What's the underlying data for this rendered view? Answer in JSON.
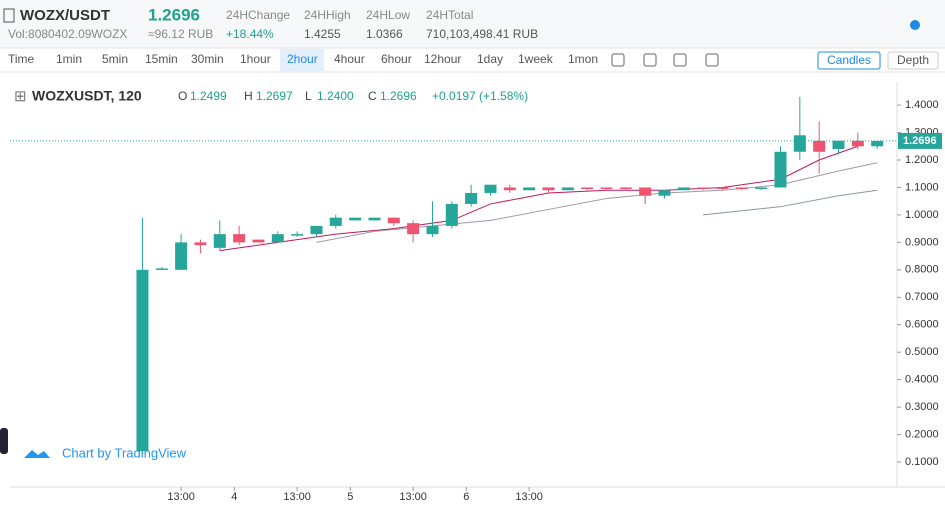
{
  "header": {
    "pair": "WOZX/USDT",
    "price": "1.2696",
    "volume": "Vol:8080402.09WOZX",
    "approx": "≈96.12 RUB",
    "stats": [
      {
        "label": "24HChange",
        "value": "+18.44%"
      },
      {
        "label": "24HHigh",
        "value": "1.4255"
      },
      {
        "label": "24HLow",
        "value": "1.0366"
      },
      {
        "label": "24HTotal",
        "value": "710,103,498.41 RUB"
      }
    ]
  },
  "toolbar": {
    "intervals": [
      "Time",
      "1min",
      "5min",
      "15min",
      "30min",
      "1hour",
      "2hour",
      "4hour",
      "6hour",
      "12hour",
      "1day",
      "1week",
      "1mon"
    ],
    "active": "2hour",
    "views": [
      "Candles",
      "Depth"
    ]
  },
  "legend": {
    "symbol": "WOZXUSDT, 120",
    "o_label": "O",
    "open": "1.2499",
    "h_label": "H",
    "high": "1.2697",
    "l_label": "L",
    "low": "1.2400",
    "c_label": "C",
    "close": "1.2696",
    "change": "+0.0197 (+1.58%)"
  },
  "watermark": "Chart by TradingView",
  "chart_data": {
    "type": "candlestick",
    "up_color": "#26a69a",
    "down_color": "#ef5370",
    "xlim": [
      -22.4,
      161.1
    ],
    "ylim": [
      0.009,
      1.455
    ],
    "xticks": [
      {
        "value": 13,
        "label": "13:00"
      },
      {
        "value": 24,
        "label": "4"
      },
      {
        "value": 37,
        "label": "13:00"
      },
      {
        "value": 48,
        "label": "5"
      },
      {
        "value": 61,
        "label": "13:00"
      },
      {
        "value": 72,
        "label": "6"
      },
      {
        "value": 85,
        "label": "13:00"
      }
    ],
    "yticks": [
      {
        "value": 0.1,
        "label": "0.1000"
      },
      {
        "value": 0.2,
        "label": "0.2000"
      },
      {
        "value": 0.3,
        "label": "0.3000"
      },
      {
        "value": 0.4,
        "label": "0.4000"
      },
      {
        "value": 0.5,
        "label": "0.5000"
      },
      {
        "value": 0.6,
        "label": "0.6000"
      },
      {
        "value": 0.7,
        "label": "0.7000"
      },
      {
        "value": 0.8,
        "label": "0.8000"
      },
      {
        "value": 0.9,
        "label": "0.9000"
      },
      {
        "value": 1.0,
        "label": "1.0000"
      },
      {
        "value": 1.1,
        "label": "1.1000"
      },
      {
        "value": 1.2,
        "label": "1.2000"
      },
      {
        "value": 1.3,
        "label": "1.3000"
      },
      {
        "value": 1.4,
        "label": "1.4000"
      }
    ],
    "candles": [
      [
        5,
        0.14,
        0.99,
        0.13,
        0.8
      ],
      [
        9,
        0.8,
        0.81,
        0.8,
        0.805
      ],
      [
        13,
        0.8,
        0.93,
        0.8,
        0.9
      ],
      [
        17,
        0.9,
        0.91,
        0.86,
        0.89
      ],
      [
        21,
        0.88,
        0.98,
        0.87,
        0.93
      ],
      [
        25,
        0.93,
        0.96,
        0.89,
        0.9
      ],
      [
        29,
        0.91,
        0.91,
        0.9,
        0.9
      ],
      [
        33,
        0.9,
        0.94,
        0.9,
        0.93
      ],
      [
        37,
        0.925,
        0.94,
        0.92,
        0.93
      ],
      [
        41,
        0.93,
        0.96,
        0.92,
        0.96
      ],
      [
        45,
        0.96,
        1.0,
        0.95,
        0.99
      ],
      [
        49,
        0.98,
        0.99,
        0.98,
        0.99
      ],
      [
        53,
        0.98,
        0.99,
        0.98,
        0.99
      ],
      [
        57,
        0.99,
        0.99,
        0.96,
        0.97
      ],
      [
        61,
        0.97,
        0.98,
        0.9,
        0.93
      ],
      [
        65,
        0.93,
        1.05,
        0.92,
        0.96
      ],
      [
        69,
        0.96,
        1.05,
        0.95,
        1.04
      ],
      [
        73,
        1.04,
        1.11,
        1.03,
        1.08
      ],
      [
        77,
        1.08,
        1.11,
        1.07,
        1.11
      ],
      [
        81,
        1.1,
        1.11,
        1.08,
        1.09
      ],
      [
        85,
        1.09,
        1.1,
        1.09,
        1.1
      ],
      [
        89,
        1.1,
        1.1,
        1.08,
        1.09
      ],
      [
        93,
        1.09,
        1.1,
        1.09,
        1.1
      ],
      [
        97,
        1.1,
        1.1,
        1.09,
        1.095
      ],
      [
        101,
        1.1,
        1.1,
        1.09,
        1.095
      ],
      [
        105,
        1.1,
        1.1,
        1.09,
        1.095
      ],
      [
        109,
        1.1,
        1.1,
        1.04,
        1.07
      ],
      [
        113,
        1.07,
        1.09,
        1.06,
        1.09
      ],
      [
        117,
        1.09,
        1.1,
        1.09,
        1.1
      ],
      [
        121,
        1.1,
        1.1,
        1.09,
        1.095
      ],
      [
        125,
        1.1,
        1.1,
        1.09,
        1.095
      ],
      [
        129,
        1.1,
        1.1,
        1.09,
        1.095
      ],
      [
        133,
        1.095,
        1.1,
        1.09,
        1.1
      ],
      [
        137,
        1.1,
        1.25,
        1.1,
        1.23
      ],
      [
        141,
        1.23,
        1.43,
        1.2,
        1.29
      ],
      [
        145,
        1.27,
        1.34,
        1.15,
        1.23
      ],
      [
        149,
        1.24,
        1.27,
        1.22,
        1.27
      ],
      [
        153,
        1.27,
        1.3,
        1.24,
        1.25
      ],
      [
        157,
        1.2499,
        1.2697,
        1.24,
        1.2696
      ]
    ],
    "ma_lines": [
      {
        "color": "#c2185b",
        "x": [
          21,
          33,
          45,
          57,
          69,
          77,
          89,
          101,
          113,
          125,
          137,
          145,
          153
        ],
        "values": [
          0.87,
          0.9,
          0.93,
          0.95,
          0.98,
          1.04,
          1.08,
          1.09,
          1.09,
          1.1,
          1.13,
          1.2,
          1.25
        ]
      },
      {
        "color": "#9e9aa8",
        "x": [
          41,
          53,
          65,
          77,
          89,
          101,
          113,
          125,
          137,
          149,
          157
        ],
        "values": [
          0.9,
          0.94,
          0.96,
          0.98,
          1.02,
          1.06,
          1.08,
          1.09,
          1.11,
          1.16,
          1.19
        ]
      },
      {
        "color": "#8a9a96",
        "x": [
          121,
          137,
          149,
          157
        ],
        "values": [
          1.0,
          1.03,
          1.07,
          1.09
        ]
      }
    ],
    "last_price": {
      "value": 1.2696,
      "label": "1.2696"
    }
  }
}
